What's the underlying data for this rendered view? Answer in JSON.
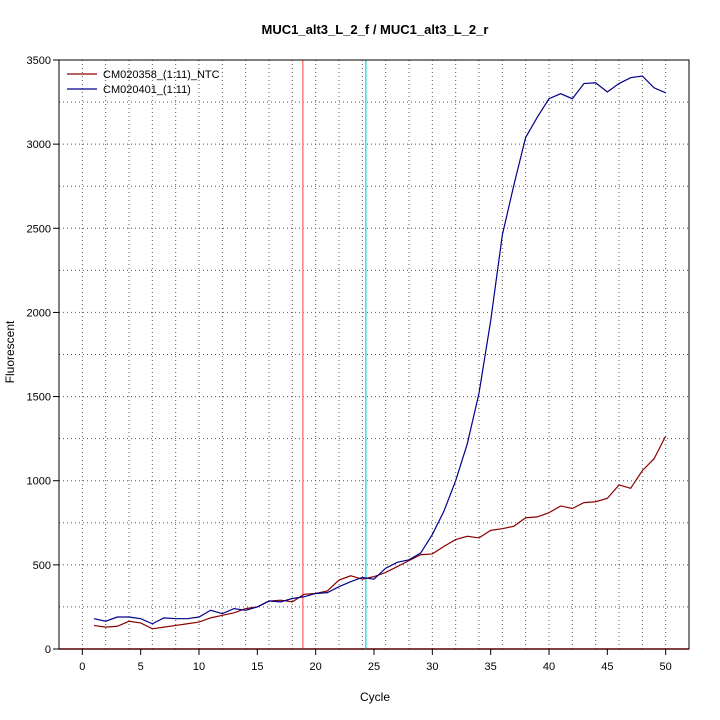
{
  "chart_data": {
    "type": "line",
    "title": "MUC1_alt3_L_2_f / MUC1_alt3_L_2_r",
    "xlabel": "Cycle",
    "ylabel": "Fluorescent",
    "xlim": [
      -2,
      52
    ],
    "ylim": [
      0,
      3500
    ],
    "xticks": [
      0,
      5,
      10,
      15,
      20,
      25,
      30,
      35,
      40,
      45,
      50
    ],
    "yticks": [
      0,
      500,
      1000,
      1500,
      2000,
      2500,
      3000,
      3500
    ],
    "x_gridlines": [
      0,
      2,
      4,
      6,
      8,
      10,
      12,
      14,
      16,
      18,
      20,
      22,
      24,
      26,
      28,
      30,
      32,
      34,
      36,
      38,
      40,
      42,
      44,
      46,
      48,
      50
    ],
    "y_gridlines": [
      0,
      250,
      500,
      750,
      1000,
      1250,
      1500,
      1750,
      2000,
      2250,
      2500,
      2750,
      3000,
      3250,
      3500
    ],
    "grid": true,
    "legend_position": "top-left",
    "baseline": {
      "y": 0,
      "color": "#ff0000"
    },
    "vertical_markers": [
      {
        "x": 18.9,
        "color": "#ff8080"
      },
      {
        "x": 24.3,
        "color": "#33e0e0"
      }
    ],
    "x": [
      1,
      2,
      3,
      4,
      5,
      6,
      7,
      8,
      9,
      10,
      11,
      12,
      13,
      14,
      15,
      16,
      17,
      18,
      19,
      20,
      21,
      22,
      23,
      24,
      25,
      26,
      27,
      28,
      29,
      30,
      31,
      32,
      33,
      34,
      35,
      36,
      37,
      38,
      39,
      40,
      41,
      42,
      43,
      44,
      45,
      46,
      47,
      48,
      49,
      50
    ],
    "series": [
      {
        "name": "CM020358_(1:11)_NTC",
        "color": "#8b0000",
        "values": [
          140,
          130,
          135,
          165,
          155,
          120,
          130,
          140,
          150,
          160,
          185,
          200,
          215,
          240,
          250,
          285,
          290,
          280,
          325,
          330,
          345,
          410,
          435,
          415,
          430,
          455,
          490,
          525,
          560,
          565,
          610,
          650,
          670,
          660,
          705,
          715,
          730,
          780,
          785,
          810,
          850,
          835,
          870,
          875,
          895,
          975,
          955,
          1060,
          1130,
          1265
        ]
      },
      {
        "name": "CM020401_(1:11)",
        "color": "#00008b",
        "values": [
          180,
          165,
          190,
          190,
          180,
          150,
          185,
          180,
          180,
          190,
          230,
          210,
          240,
          230,
          250,
          285,
          280,
          300,
          310,
          330,
          335,
          370,
          400,
          425,
          415,
          480,
          515,
          530,
          570,
          680,
          820,
          1000,
          1220,
          1520,
          1950,
          2460,
          2760,
          3040,
          3160,
          3270,
          3300,
          3270,
          3360,
          3365,
          3310,
          3360,
          3395,
          3405,
          3335,
          3305
        ]
      }
    ]
  }
}
